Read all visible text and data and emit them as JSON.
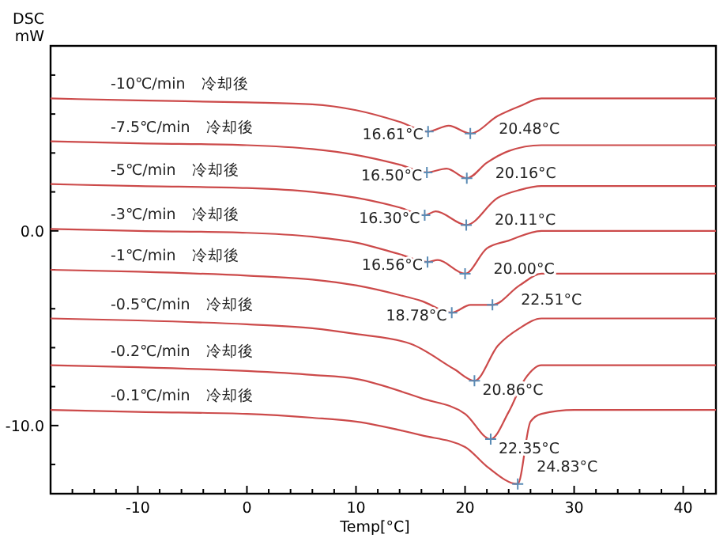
{
  "chart_data": {
    "type": "line",
    "xlabel": "Temp[°C]",
    "ylabel": "DSC\nmW",
    "xlim": [
      -18,
      43
    ],
    "ylim": [
      -13.5,
      9.5
    ],
    "xticks": [
      {
        "value": -16,
        "label": null
      },
      {
        "value": -14,
        "label": null
      },
      {
        "value": -12,
        "label": null
      },
      -10,
      {
        "value": -8,
        "label": null
      },
      {
        "value": -6,
        "label": null
      },
      {
        "value": -4,
        "label": null
      },
      {
        "value": -2,
        "label": null
      },
      0,
      {
        "value": 2,
        "label": null
      },
      {
        "value": 4,
        "label": null
      },
      {
        "value": 6,
        "label": null
      },
      {
        "value": 8,
        "label": null
      },
      10,
      {
        "value": 12,
        "label": null
      },
      {
        "value": 14,
        "label": null
      },
      {
        "value": 16,
        "label": null
      },
      {
        "value": 18,
        "label": null
      },
      20,
      {
        "value": 22,
        "label": null
      },
      {
        "value": 24,
        "label": null
      },
      {
        "value": 26,
        "label": null
      },
      {
        "value": 28,
        "label": null
      },
      30,
      {
        "value": 32,
        "label": null
      },
      {
        "value": 34,
        "label": null
      },
      {
        "value": 36,
        "label": null
      },
      {
        "value": 38,
        "label": null
      },
      40,
      {
        "value": 42,
        "label": null
      }
    ],
    "yticks": [
      {
        "value": 8,
        "label": null
      },
      {
        "value": 6,
        "label": null
      },
      {
        "value": 4,
        "label": null
      },
      {
        "value": 2,
        "label": null
      },
      {
        "value": 0,
        "label": "0.0"
      },
      {
        "value": -2,
        "label": null
      },
      {
        "value": -4,
        "label": null
      },
      {
        "value": -6,
        "label": null
      },
      {
        "value": -8,
        "label": null
      },
      {
        "value": -10,
        "label": "-10.0"
      },
      {
        "value": -12,
        "label": null
      }
    ],
    "grid": false,
    "line_style": "solid",
    "series": [
      {
        "name": "-10℃/min　冷却後",
        "color": "#cc4a4a",
        "x": [
          -18,
          -10,
          0,
          6,
          10,
          14,
          16.61,
          18.5,
          20.48,
          23,
          25,
          27,
          43
        ],
        "values": [
          6.8,
          6.7,
          6.6,
          6.5,
          6.2,
          5.6,
          5.1,
          5.4,
          5.0,
          5.9,
          6.4,
          6.8,
          6.8
        ]
      },
      {
        "name": "-7.5℃/min　冷却後",
        "color": "#cc4a4a",
        "x": [
          -18,
          -10,
          0,
          6,
          10,
          14,
          16.5,
          18.3,
          20.16,
          22,
          24,
          27,
          43
        ],
        "values": [
          4.6,
          4.5,
          4.4,
          4.2,
          3.9,
          3.4,
          3.0,
          3.2,
          2.7,
          3.5,
          4.1,
          4.4,
          4.4
        ]
      },
      {
        "name": "-5℃/min　冷却後",
        "color": "#cc4a4a",
        "x": [
          -18,
          -10,
          0,
          6,
          10,
          14,
          16.3,
          17.3,
          20.11,
          23,
          25,
          27,
          43
        ],
        "values": [
          2.4,
          2.3,
          2.2,
          2.0,
          1.7,
          1.2,
          0.8,
          1.0,
          0.3,
          1.7,
          2.1,
          2.3,
          2.3
        ]
      },
      {
        "name": "-3℃/min　冷却後",
        "color": "#cc4a4a",
        "x": [
          -18,
          -10,
          0,
          6,
          10,
          14,
          16.56,
          17.5,
          20,
          22,
          24,
          27,
          43
        ],
        "values": [
          0.1,
          0.0,
          -0.1,
          -0.3,
          -0.6,
          -1.2,
          -1.6,
          -1.5,
          -2.2,
          -0.9,
          -0.5,
          0,
          0
        ]
      },
      {
        "name": "-1℃/min　冷却後",
        "color": "#cc4a4a",
        "x": [
          -18,
          -10,
          0,
          6,
          10,
          14,
          16,
          18.78,
          20.5,
          22.51,
          25,
          27,
          43
        ],
        "values": [
          -2.0,
          -2.1,
          -2.3,
          -2.5,
          -2.8,
          -3.3,
          -3.6,
          -4.2,
          -3.8,
          -3.8,
          -2.8,
          -2.2,
          -2.2
        ]
      },
      {
        "name": "-0.5℃/min　冷却後",
        "color": "#cc4a4a",
        "x": [
          -18,
          -10,
          0,
          6,
          10,
          15,
          19,
          20.86,
          23,
          25,
          27,
          43
        ],
        "values": [
          -4.5,
          -4.6,
          -4.8,
          -5.0,
          -5.3,
          -5.8,
          -7.1,
          -7.7,
          -5.9,
          -5.0,
          -4.5,
          -4.5
        ]
      },
      {
        "name": "-0.2℃/min　冷却後",
        "color": "#cc4a4a",
        "x": [
          -18,
          -10,
          0,
          6,
          10,
          16,
          20,
          22.35,
          24,
          25.5,
          27,
          43
        ],
        "values": [
          -6.9,
          -7.0,
          -7.2,
          -7.4,
          -7.6,
          -8.6,
          -9.4,
          -10.7,
          -9.3,
          -7.6,
          -6.9,
          -6.9
        ]
      },
      {
        "name": "-0.1℃/min　冷却後",
        "color": "#cc4a4a",
        "x": [
          -18,
          -10,
          0,
          6,
          10,
          16,
          20,
          22,
          24.83,
          26,
          27,
          30,
          43
        ],
        "values": [
          -9.2,
          -9.3,
          -9.4,
          -9.6,
          -9.8,
          -10.5,
          -11.1,
          -12.1,
          -13.0,
          -9.8,
          -9.4,
          -9.2,
          -9.2
        ]
      },
      {
        "type": "scatter",
        "marker": "cross",
        "color": "#5a8bb5",
        "x": [
          16.61,
          20.48,
          16.5,
          20.16,
          16.3,
          20.11,
          16.56,
          20,
          18.78,
          22.51,
          20.86,
          22.35,
          24.83
        ],
        "values": [
          5.1,
          5.0,
          3.0,
          2.7,
          0.8,
          0.3,
          -1.6,
          -2.2,
          -4.2,
          -3.8,
          -7.7,
          -10.7,
          -13.0
        ]
      }
    ],
    "annotations": [
      {
        "text": "16.61°C",
        "x": 16.61,
        "y": 5.1
      },
      {
        "text": "20.48°C",
        "x": 20.48,
        "y": 5.0
      },
      {
        "text": "16.50°C",
        "x": 16.5,
        "y": 3.0
      },
      {
        "text": "20.16°C",
        "x": 20.16,
        "y": 2.7
      },
      {
        "text": "16.30°C",
        "x": 16.3,
        "y": 0.8
      },
      {
        "text": "20.11°C",
        "x": 20.11,
        "y": 0.3
      },
      {
        "text": "16.56°C",
        "x": 16.56,
        "y": -1.6
      },
      {
        "text": "20.00°C",
        "x": 20,
        "y": -2.2
      },
      {
        "text": "18.78°C",
        "x": 18.78,
        "y": -4.2
      },
      {
        "text": "22.51°C",
        "x": 22.51,
        "y": -3.8
      },
      {
        "text": "20.86°C",
        "x": 20.86,
        "y": -7.7
      },
      {
        "text": "22.35°C",
        "x": 22.35,
        "y": -10.7
      },
      {
        "text": "24.83°C",
        "x": 24.83,
        "y": -13.0
      }
    ]
  }
}
